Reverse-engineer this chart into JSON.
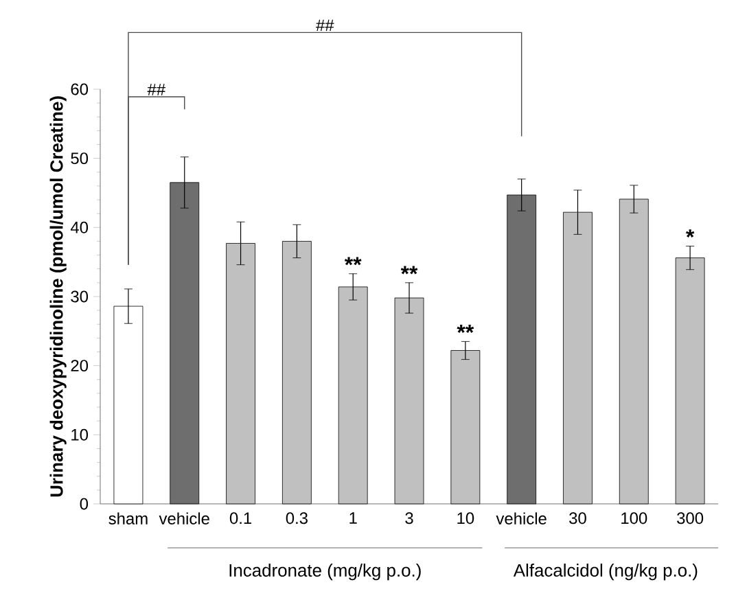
{
  "chart_data": {
    "type": "bar",
    "ylabel": "Urinary deoxypyridinoline (pmol/umol Creatine)",
    "categories": [
      "sham",
      "vehicle",
      "0.1",
      "0.3",
      "1",
      "3",
      "10",
      "vehicle",
      "30",
      "100",
      "300"
    ],
    "values": [
      28.6,
      46.5,
      37.7,
      38.0,
      31.4,
      29.8,
      22.2,
      44.7,
      42.2,
      44.1,
      35.6
    ],
    "errors": [
      2.5,
      3.7,
      3.1,
      2.4,
      1.9,
      2.2,
      1.3,
      2.3,
      3.2,
      2.0,
      1.7
    ],
    "colors": [
      "#ffffff",
      "#6e6e6e",
      "#c0c0c0",
      "#c0c0c0",
      "#c0c0c0",
      "#c0c0c0",
      "#c0c0c0",
      "#6e6e6e",
      "#c0c0c0",
      "#c0c0c0",
      "#c0c0c0"
    ],
    "ylim": [
      0,
      60
    ],
    "yticks": [
      0,
      10,
      20,
      30,
      40,
      50,
      60
    ],
    "annotations": [
      "##",
      "##",
      {
        "text": "**",
        "x": "1",
        "y": 33.3
      },
      {
        "text": "**",
        "x": "3",
        "y": 32.0
      },
      {
        "text": "**",
        "x": "10",
        "y": 23.5
      },
      {
        "text": "*",
        "x": "300",
        "y": 37.3
      },
      "Incadronate (mg/kg p.o.)",
      "Alfacalcidol (ng/kg p.o.)"
    ]
  }
}
